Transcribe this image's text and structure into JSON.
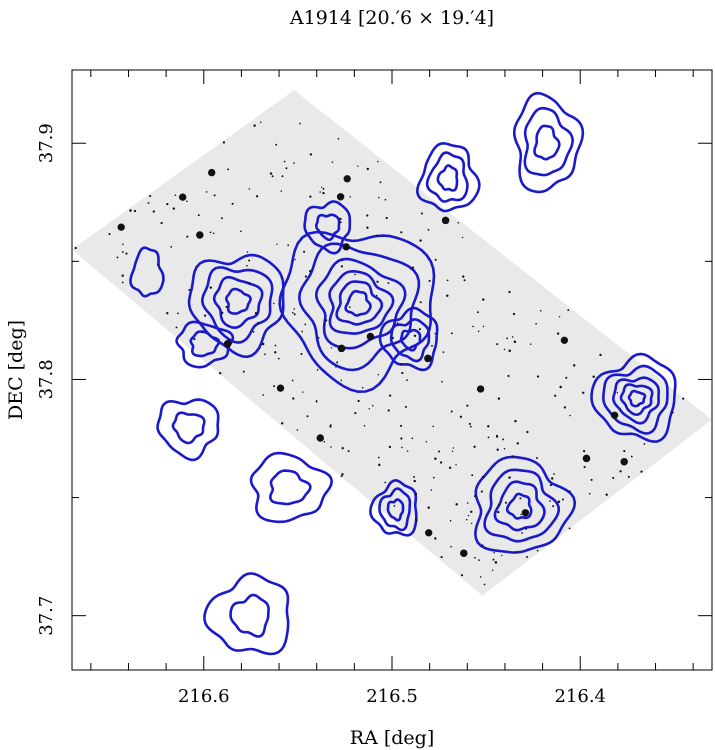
{
  "chart_data": {
    "type": "image-contour",
    "title": "A1914  [20.′6 × 19.′4]",
    "xlabel": "RA [deg]",
    "ylabel": "DEC [deg]",
    "xlim": [
      216.67,
      216.33
    ],
    "ylim": [
      37.677,
      37.931
    ],
    "x_ticks": [
      216.6,
      216.5,
      216.4
    ],
    "x_tick_labels": [
      "216.6",
      "216.5",
      "216.4"
    ],
    "y_ticks": [
      37.7,
      37.8,
      37.9
    ],
    "y_tick_labels": [
      "37.7",
      "37.8",
      "37.9"
    ],
    "x_minor_step": 0.02,
    "y_minor_step": 0.05,
    "image": {
      "corners": [
        [
          216.67,
          37.855
        ],
        [
          216.552,
          37.9225
        ],
        [
          216.33,
          37.783
        ],
        [
          216.452,
          37.7085
        ]
      ]
    },
    "contour_color": "#1a1acc",
    "contours": [
      {
        "name": "central-cluster",
        "center": [
          216.518,
          37.832
        ],
        "radii": [
          [
            0.006,
            0.005
          ],
          [
            0.011,
            0.009
          ],
          [
            0.016,
            0.013
          ],
          [
            0.022,
            0.018
          ],
          [
            0.03,
            0.025
          ],
          [
            0.04,
            0.032
          ]
        ]
      },
      {
        "name": "west-peak",
        "center": [
          216.582,
          37.833
        ],
        "radii": [
          [
            0.006,
            0.005
          ],
          [
            0.012,
            0.01
          ],
          [
            0.018,
            0.015
          ],
          [
            0.025,
            0.02
          ]
        ]
      },
      {
        "name": "east-peak",
        "center": [
          216.49,
          37.817
        ],
        "radii": [
          [
            0.005,
            0.004
          ],
          [
            0.01,
            0.008
          ],
          [
            0.015,
            0.012
          ]
        ]
      },
      {
        "name": "north-blob",
        "center": [
          216.47,
          37.885
        ],
        "radii": [
          [
            0.005,
            0.005
          ],
          [
            0.01,
            0.01
          ],
          [
            0.015,
            0.014
          ]
        ]
      },
      {
        "name": "ne-group",
        "center": [
          216.418,
          37.9
        ],
        "radii": [
          [
            0.006,
            0.007
          ],
          [
            0.012,
            0.014
          ],
          [
            0.017,
            0.02
          ]
        ]
      },
      {
        "name": "east-knot",
        "center": [
          216.37,
          37.792
        ],
        "radii": [
          [
            0.004,
            0.003
          ],
          [
            0.008,
            0.006
          ],
          [
            0.012,
            0.009
          ],
          [
            0.017,
            0.013
          ],
          [
            0.022,
            0.017
          ]
        ]
      },
      {
        "name": "south-blob",
        "center": [
          216.498,
          37.745
        ],
        "radii": [
          [
            0.004,
            0.004
          ],
          [
            0.008,
            0.008
          ],
          [
            0.012,
            0.011
          ]
        ]
      },
      {
        "name": "se-group",
        "center": [
          216.432,
          37.746
        ],
        "radii": [
          [
            0.006,
            0.005
          ],
          [
            0.012,
            0.01
          ],
          [
            0.018,
            0.015
          ],
          [
            0.025,
            0.02
          ]
        ]
      },
      {
        "name": "sw-ring",
        "center": [
          216.555,
          37.754
        ],
        "radii": [
          [
            0.01,
            0.007
          ],
          [
            0.02,
            0.014
          ]
        ]
      },
      {
        "name": "west-blob",
        "center": [
          216.608,
          37.78
        ],
        "radii": [
          [
            0.008,
            0.006
          ],
          [
            0.016,
            0.012
          ]
        ]
      },
      {
        "name": "sw-corner",
        "center": [
          216.575,
          37.7
        ],
        "radii": [
          [
            0.01,
            0.008
          ],
          [
            0.022,
            0.016
          ]
        ]
      },
      {
        "name": "nw-small",
        "center": [
          216.63,
          37.845
        ],
        "radii": [
          [
            0.008,
            0.01
          ]
        ]
      },
      {
        "name": "mid-west",
        "center": [
          216.6,
          37.815
        ],
        "radii": [
          [
            0.007,
            0.005
          ],
          [
            0.014,
            0.009
          ]
        ]
      },
      {
        "name": "north-small",
        "center": [
          216.534,
          37.865
        ],
        "radii": [
          [
            0.006,
            0.005
          ],
          [
            0.012,
            0.01
          ]
        ]
      }
    ]
  }
}
